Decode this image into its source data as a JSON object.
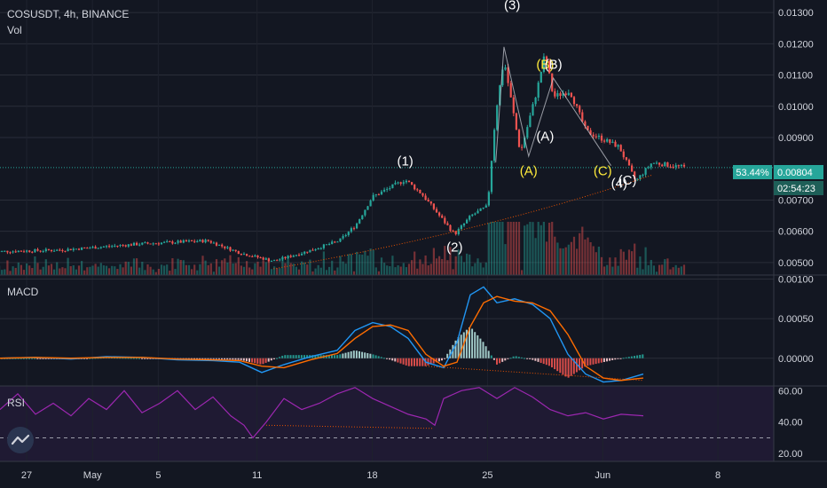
{
  "header": {
    "symbol_line": "COSUSDT, 4h, BINANCE",
    "volume_label": "Vol"
  },
  "macd_label": "MACD",
  "rsi_label": "RSI",
  "price_badge": {
    "change": "53.44%",
    "price": "0.00804",
    "countdown": "02:54:23"
  },
  "colors": {
    "up": "#26a69a",
    "down": "#ef5350",
    "macd_line": "#2196f3",
    "signal_line": "#ff6d00",
    "rsi_line": "#9c27b0",
    "annotation_white": "#ffffff",
    "annotation_yellow": "#ffeb3b",
    "trend_dotted": "#e65100",
    "current_price_line": "#26a69a"
  },
  "chart_data": [
    {
      "type": "candlestick",
      "title": "COSUSDT, 4h, BINANCE",
      "x_tick_labels": [
        "27",
        "May",
        "5",
        "11",
        "18",
        "25",
        "Jun",
        "8"
      ],
      "y_tick_labels": [
        "0.01300",
        "0.01200",
        "0.01100",
        "0.01000",
        "0.00900",
        "0.00700",
        "0.00600",
        "0.00500"
      ],
      "ylim": [
        0.0046,
        0.0134
      ],
      "current_price": 0.00804,
      "anchors": [
        {
          "x": "Apr 25",
          "price": 0.00535
        },
        {
          "x": "Apr 29",
          "price": 0.0054
        },
        {
          "x": "May 3",
          "price": 0.0056
        },
        {
          "x": "May 7",
          "price": 0.0057
        },
        {
          "x": "May 9",
          "price": 0.0053
        },
        {
          "x": "May 11",
          "price": 0.00505
        },
        {
          "x": "May 13",
          "price": 0.00535
        },
        {
          "x": "May 15",
          "price": 0.0057
        },
        {
          "x": "May 16",
          "price": 0.0062
        },
        {
          "x": "May 17",
          "price": 0.0071
        },
        {
          "x": "May 19",
          "price": 0.00765
        },
        {
          "x": "May 20",
          "price": 0.0072
        },
        {
          "x": "May 22",
          "price": 0.0059
        },
        {
          "x": "May 23",
          "price": 0.0065
        },
        {
          "x": "May 24",
          "price": 0.0068
        },
        {
          "x": "May 24.5",
          "price": 0.0098
        },
        {
          "x": "May 25",
          "price": 0.0115
        },
        {
          "x": "May 26",
          "price": 0.0085
        },
        {
          "x": "May 27",
          "price": 0.0105
        },
        {
          "x": "May 27.5",
          "price": 0.0117
        },
        {
          "x": "May 28",
          "price": 0.0103
        },
        {
          "x": "May 29",
          "price": 0.0105
        },
        {
          "x": "May 30",
          "price": 0.0092
        },
        {
          "x": "Jun 1",
          "price": 0.0087
        },
        {
          "x": "Jun 2",
          "price": 0.0076
        },
        {
          "x": "Jun 3",
          "price": 0.0082
        },
        {
          "x": "Jun 5",
          "price": 0.00804
        }
      ],
      "annotations": [
        {
          "text": "(1)",
          "x": "May 19",
          "price": 0.0081,
          "color": "white"
        },
        {
          "text": "(2)",
          "x": "May 22",
          "price": 0.00535,
          "color": "white"
        },
        {
          "text": "(3)",
          "x": "May 25.5",
          "price": 0.0131,
          "color": "white"
        },
        {
          "text": "(4)",
          "x": "Jun 1",
          "price": 0.0074,
          "color": "white"
        },
        {
          "text": "(A)",
          "x": "May 26.5",
          "price": 0.0078,
          "color": "yellow"
        },
        {
          "text": "(B)",
          "x": "May 27.5",
          "price": 0.0112,
          "color": "yellow"
        },
        {
          "text": "(C)",
          "x": "May 31",
          "price": 0.0078,
          "color": "yellow"
        },
        {
          "text": "(A)",
          "x": "May 27.5",
          "price": 0.0089,
          "color": "white"
        },
        {
          "text": "(B)",
          "x": "May 28",
          "price": 0.0112,
          "color": "white"
        },
        {
          "text": "(C)",
          "x": "Jun 1.5",
          "price": 0.0075,
          "color": "white"
        }
      ]
    },
    {
      "type": "line",
      "title": "MACD",
      "y_tick_labels": [
        "0.00100",
        "0.00050",
        "0.00000"
      ],
      "ylim": [
        -0.00035,
        0.00105
      ],
      "series": [
        {
          "name": "MACD",
          "values": [
            [
              0,
              0
            ],
            [
              40,
              1e-05
            ],
            [
              80,
              -1e-05
            ],
            [
              120,
              2e-05
            ],
            [
              160,
              1e-05
            ],
            [
              200,
              -2e-05
            ],
            [
              240,
              -3e-05
            ],
            [
              270,
              -5e-05
            ],
            [
              295,
              -0.00018
            ],
            [
              320,
              -8e-05
            ],
            [
              350,
              2e-05
            ],
            [
              380,
              0.0001
            ],
            [
              400,
              0.00035
            ],
            [
              420,
              0.00045
            ],
            [
              440,
              0.0004
            ],
            [
              460,
              0.00025
            ],
            [
              480,
              -5e-05
            ],
            [
              500,
              -0.00012
            ],
            [
              515,
              0.0002
            ],
            [
              530,
              0.0008
            ],
            [
              545,
              0.0009
            ],
            [
              560,
              0.0007
            ],
            [
              580,
              0.00075
            ],
            [
              600,
              0.00068
            ],
            [
              620,
              0.0005
            ],
            [
              640,
              5e-05
            ],
            [
              660,
              -0.0002
            ],
            [
              680,
              -0.0003
            ],
            [
              700,
              -0.00028
            ],
            [
              725,
              -0.0002
            ]
          ]
        },
        {
          "name": "Signal",
          "values": [
            [
              0,
              0
            ],
            [
              40,
              1e-05
            ],
            [
              80,
              0
            ],
            [
              120,
              1e-05
            ],
            [
              160,
              1e-05
            ],
            [
              200,
              -1e-05
            ],
            [
              240,
              -2e-05
            ],
            [
              270,
              -3e-05
            ],
            [
              295,
              -0.0001
            ],
            [
              320,
              -0.00012
            ],
            [
              350,
              -2e-05
            ],
            [
              380,
              6e-05
            ],
            [
              400,
              0.00025
            ],
            [
              420,
              0.0004
            ],
            [
              440,
              0.00042
            ],
            [
              460,
              0.00035
            ],
            [
              480,
              5e-05
            ],
            [
              500,
              -0.0001
            ],
            [
              515,
              -5e-05
            ],
            [
              530,
              0.0004
            ],
            [
              545,
              0.0007
            ],
            [
              560,
              0.00078
            ],
            [
              580,
              0.00072
            ],
            [
              600,
              0.0007
            ],
            [
              620,
              0.0006
            ],
            [
              640,
              0.0003
            ],
            [
              660,
              -0.0001
            ],
            [
              680,
              -0.00025
            ],
            [
              700,
              -0.00028
            ],
            [
              725,
              -0.00025
            ]
          ]
        }
      ]
    },
    {
      "type": "line",
      "title": "RSI",
      "y_tick_labels": [
        "60.00",
        "40.00",
        "20.00"
      ],
      "ylim": [
        15,
        63
      ],
      "series": [
        {
          "name": "RSI",
          "values": [
            [
              0,
              48
            ],
            [
              20,
              58
            ],
            [
              40,
              45
            ],
            [
              60,
              52
            ],
            [
              80,
              44
            ],
            [
              100,
              55
            ],
            [
              120,
              48
            ],
            [
              140,
              60
            ],
            [
              160,
              46
            ],
            [
              180,
              52
            ],
            [
              200,
              60
            ],
            [
              220,
              48
            ],
            [
              240,
              56
            ],
            [
              260,
              44
            ],
            [
              275,
              38
            ],
            [
              285,
              30
            ],
            [
              300,
              40
            ],
            [
              320,
              55
            ],
            [
              340,
              48
            ],
            [
              360,
              52
            ],
            [
              380,
              58
            ],
            [
              400,
              62
            ],
            [
              420,
              55
            ],
            [
              440,
              50
            ],
            [
              460,
              45
            ],
            [
              480,
              42
            ],
            [
              490,
              38
            ],
            [
              500,
              55
            ],
            [
              520,
              60
            ],
            [
              540,
              62
            ],
            [
              560,
              55
            ],
            [
              580,
              62
            ],
            [
              600,
              56
            ],
            [
              620,
              48
            ],
            [
              640,
              44
            ],
            [
              660,
              46
            ],
            [
              680,
              42
            ],
            [
              700,
              45
            ],
            [
              725,
              44
            ]
          ]
        }
      ]
    }
  ]
}
